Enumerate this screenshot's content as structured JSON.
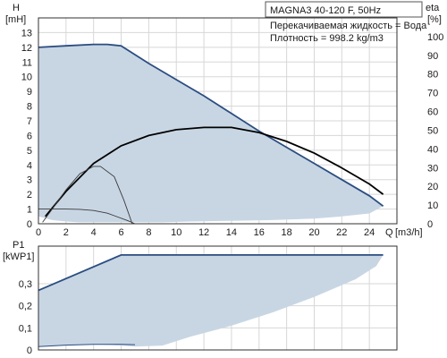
{
  "chart_data": [
    {
      "type": "line",
      "title": "MAGNA3 40-120 F, 50Hz",
      "annotations": [
        "Перекачиваемая жидкость = Вода",
        "Плотность = 998.2 kg/m3"
      ],
      "xlabel": "Q [m3/h]",
      "x_unit_label": "Q",
      "x_unit": "[m3/h]",
      "ylabel_left_name": "H",
      "ylabel_left_unit": "[mH]",
      "ylabel_right_name": "eta",
      "ylabel_right_unit": "[%]",
      "xlim": [
        0,
        26
      ],
      "ylim_left": [
        0,
        14
      ],
      "ylim_right": [
        0,
        110
      ],
      "x_ticks": [
        0,
        2,
        4,
        6,
        8,
        10,
        12,
        14,
        16,
        18,
        20,
        22,
        24
      ],
      "y_ticks_left": [
        0,
        1,
        2,
        3,
        4,
        5,
        6,
        7,
        8,
        9,
        10,
        11,
        12,
        13
      ],
      "y_ticks_right": [
        0,
        10,
        20,
        30,
        40,
        50,
        60,
        70,
        80,
        90,
        100
      ],
      "grid": true,
      "legend": "none",
      "colors": {
        "area": "#c8d6e4",
        "max_curve": "#2b4d80",
        "efficiency": "#000000",
        "thin_curves": "#3a3a3a"
      },
      "series": [
        {
          "role": "area",
          "x": [
            0,
            2,
            4,
            6,
            8,
            10,
            12,
            14,
            16,
            18,
            20,
            22,
            24,
            25,
            25,
            24,
            22,
            20,
            17,
            14,
            11,
            9,
            7,
            6,
            5,
            3,
            2,
            1,
            0
          ],
          "y": [
            12,
            12.1,
            12.2,
            12.1,
            10.9,
            9.8,
            8.7,
            7.5,
            6.3,
            5.2,
            4.1,
            3,
            1.9,
            1.2,
            1.2,
            0.7,
            0.5,
            0.35,
            0.25,
            0.2,
            0.15,
            0.1,
            0.1,
            0.1,
            0.1,
            0.1,
            0.15,
            0.25,
            0.5
          ]
        },
        {
          "role": "max_curve",
          "x": [
            0,
            2,
            4,
            5,
            6,
            8,
            10,
            12,
            14,
            16,
            18,
            20,
            22,
            24,
            25
          ],
          "y": [
            12,
            12.1,
            12.2,
            12.2,
            12.1,
            10.9,
            9.8,
            8.7,
            7.5,
            6.3,
            5.2,
            4.1,
            3,
            1.9,
            1.2
          ]
        },
        {
          "role": "efficiency",
          "x": [
            0.5,
            2,
            4,
            6,
            8,
            10,
            12,
            14,
            16,
            18,
            20,
            22,
            24,
            25
          ],
          "y": [
            0.5,
            2.2,
            4.1,
            5.3,
            6,
            6.4,
            6.55,
            6.55,
            6.2,
            5.6,
            4.8,
            3.8,
            2.7,
            2
          ]
        },
        {
          "role": "thin_curve",
          "x": [
            0.3,
            1,
            2,
            3,
            4,
            4.5,
            5.5,
            6.2,
            6.8
          ],
          "y": [
            0.1,
            1,
            2.3,
            3.4,
            3.9,
            3.9,
            3.2,
            1.6,
            0
          ]
        },
        {
          "role": "thin_curve",
          "x": [
            0,
            1,
            2,
            3,
            4,
            5,
            5.5,
            6.5,
            7
          ],
          "y": [
            1,
            1,
            1,
            0.98,
            0.9,
            0.72,
            0.55,
            0.2,
            0
          ]
        }
      ]
    },
    {
      "type": "area",
      "ylabel_name": "P1",
      "ylabel_unit": "[kWP1]",
      "xlim": [
        0,
        26
      ],
      "ylim": [
        0,
        0.47
      ],
      "y_ticks": [
        0,
        0.1,
        0.2,
        0.3
      ],
      "y_tick_labels": [
        "0",
        "0,1",
        "0,2",
        "0,3"
      ],
      "grid": true,
      "colors": {
        "area": "#c8d6e4",
        "max_curve": "#2b4d80",
        "min_curve": "#2b4d80"
      },
      "series": [
        {
          "role": "area",
          "x": [
            0,
            6,
            25,
            25,
            24.5,
            23,
            20,
            17,
            14,
            11,
            9,
            7,
            6,
            4,
            2,
            0
          ],
          "y": [
            0.27,
            0.43,
            0.43,
            0.43,
            0.38,
            0.32,
            0.24,
            0.17,
            0.11,
            0.06,
            0.02,
            0.015,
            0.02,
            0.025,
            0.02,
            0.015
          ]
        },
        {
          "role": "max_curve",
          "x": [
            0,
            6,
            25
          ],
          "y": [
            0.27,
            0.43,
            0.43
          ]
        },
        {
          "role": "min_curve",
          "x": [
            0,
            2,
            4,
            6,
            7
          ],
          "y": [
            0.015,
            0.022,
            0.025,
            0.025,
            0.024
          ]
        }
      ]
    }
  ]
}
